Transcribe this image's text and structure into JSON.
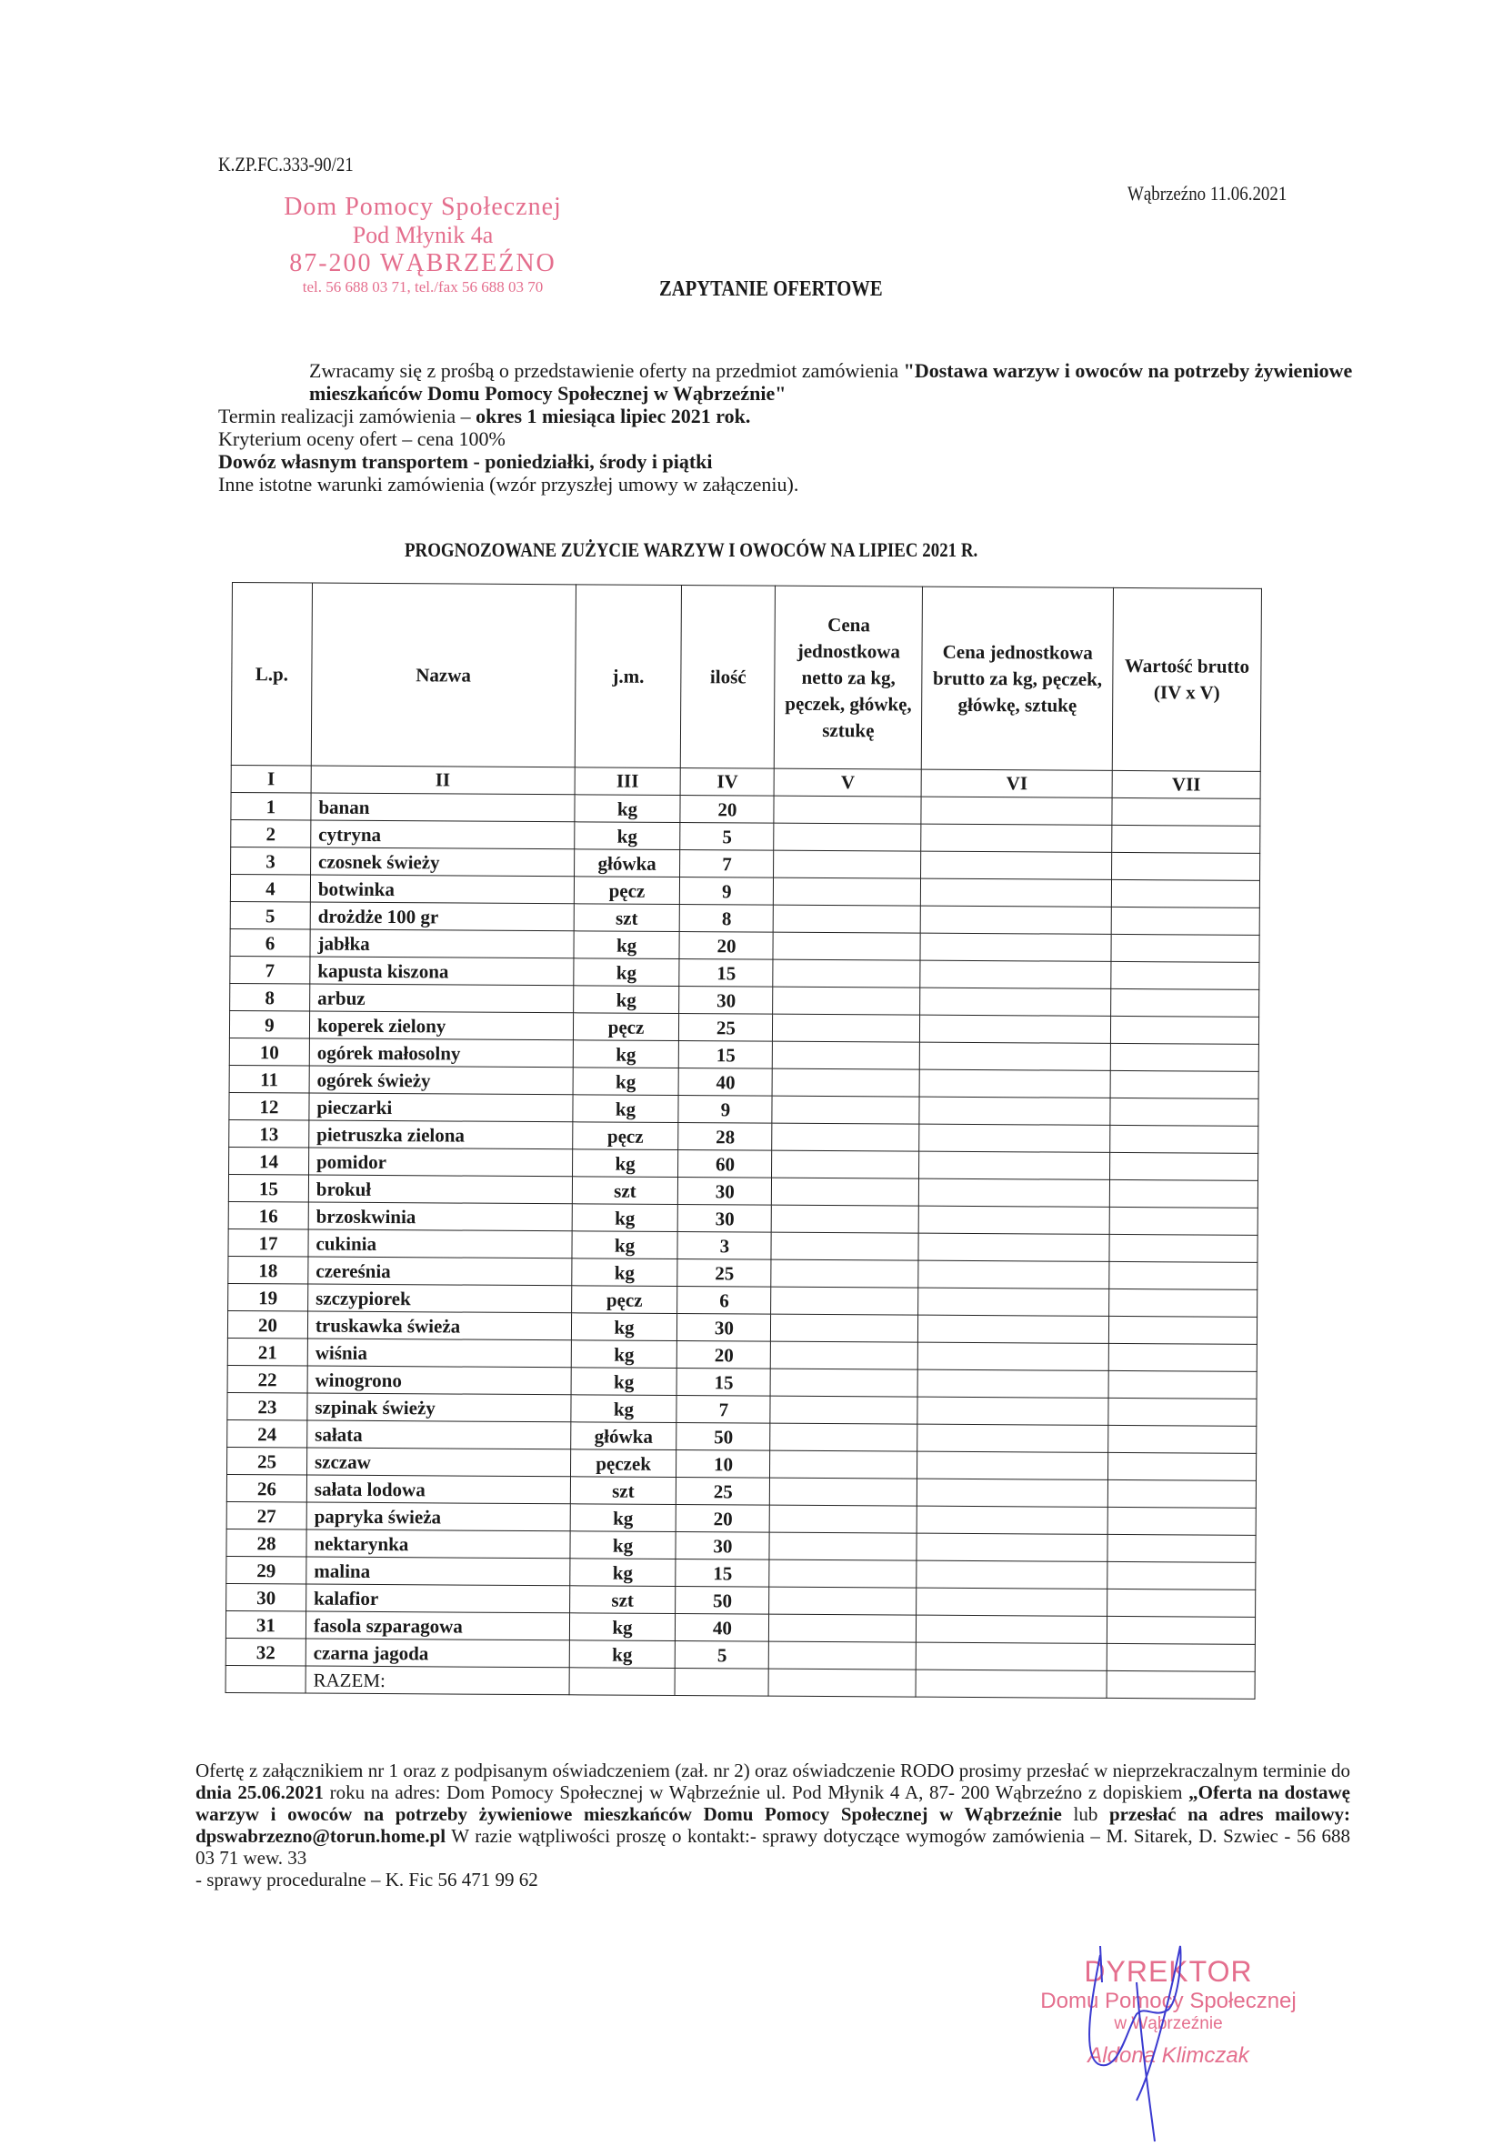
{
  "header": {
    "reference": "K.ZP.FC.333-90/21",
    "place_date": "Wąbrzeźno 11.06.2021",
    "stamp": {
      "line1": "Dom Pomocy Społecznej",
      "line2": "Pod Młynik 4a",
      "line3": "87-200 WĄBRZEŹNO",
      "line4": "tel. 56 688 03 71, tel./fax 56 688 03 70"
    },
    "title": "ZAPYTANIE OFERTOWE"
  },
  "intro": {
    "p1_text": "Zwracamy się z prośbą o przedstawienie oferty na  przedmiot zamówienia ",
    "p1_bold": "\"Dostawa warzyw i owoców na potrzeby żywieniowe mieszkańców Domu Pomocy Społecznej w Wąbrzeźnie\"",
    "term_text": "Termin realizacji zamówienia – ",
    "term_bold": "okres 1 miesiąca lipiec 2021 rok.",
    "criteria": "Kryterium oceny ofert – cena 100%",
    "delivery_bold": "Dowóz własnym transportem -  poniedziałki, środy i piątki",
    "other": "Inne istotne warunki zamówienia (wzór przyszłej umowy w załączeniu)."
  },
  "table": {
    "title": "PROGNOZOWANE ZUŻYCIE WARZYW I OWOCÓW NA LIPIEC  2021 R.",
    "headers": [
      "L.p.",
      "Nazwa",
      "j.m.",
      "ilość",
      "Cena jednostkowa netto za kg, pęczek, główkę, sztukę",
      "Cena jednostkowa brutto za kg, pęczek, główkę, sztukę",
      "Wartość brutto (IV x V)"
    ],
    "numerals": [
      "I",
      "II",
      "III",
      "IV",
      "V",
      "VI",
      "VII"
    ],
    "rows": [
      [
        "1",
        "banan",
        "kg",
        "20"
      ],
      [
        "2",
        "cytryna",
        "kg",
        "5"
      ],
      [
        "3",
        "czosnek świeży",
        "główka",
        "7"
      ],
      [
        "4",
        "botwinka",
        "pęcz",
        "9"
      ],
      [
        "5",
        "drożdże 100 gr",
        "szt",
        "8"
      ],
      [
        "6",
        "jabłka",
        "kg",
        "20"
      ],
      [
        "7",
        "kapusta kiszona",
        "kg",
        "15"
      ],
      [
        "8",
        "arbuz",
        "kg",
        "30"
      ],
      [
        "9",
        "koperek zielony",
        "pęcz",
        "25"
      ],
      [
        "10",
        "ogórek małosolny",
        "kg",
        "15"
      ],
      [
        "11",
        "ogórek świeży",
        "kg",
        "40"
      ],
      [
        "12",
        "pieczarki",
        "kg",
        "9"
      ],
      [
        "13",
        "pietruszka zielona",
        "pęcz",
        "28"
      ],
      [
        "14",
        "pomidor",
        "kg",
        "60"
      ],
      [
        "15",
        "brokuł",
        "szt",
        "30"
      ],
      [
        "16",
        "brzoskwinia",
        "kg",
        "30"
      ],
      [
        "17",
        "cukinia",
        "kg",
        "3"
      ],
      [
        "18",
        "czereśnia",
        "kg",
        "25"
      ],
      [
        "19",
        "szczypiorek",
        "pęcz",
        "6"
      ],
      [
        "20",
        "truskawka świeża",
        "kg",
        "30"
      ],
      [
        "21",
        "wiśnia",
        "kg",
        "20"
      ],
      [
        "22",
        "winogrono",
        "kg",
        "15"
      ],
      [
        "23",
        "szpinak świeży",
        "kg",
        "7"
      ],
      [
        "24",
        "sałata",
        "główka",
        "50"
      ],
      [
        "25",
        "szczaw",
        "pęczek",
        "10"
      ],
      [
        "26",
        "sałata lodowa",
        "szt",
        "25"
      ],
      [
        "27",
        "papryka świeża",
        "kg",
        "20"
      ],
      [
        "28",
        "nektarynka",
        "kg",
        "30"
      ],
      [
        "29",
        "malina",
        "kg",
        "15"
      ],
      [
        "30",
        "kalafior",
        "szt",
        "50"
      ],
      [
        "31",
        "fasola szparagowa",
        "kg",
        "40"
      ],
      [
        "32",
        "czarna jagoda",
        "kg",
        "5"
      ]
    ],
    "total_label": "RAZEM:"
  },
  "footer": {
    "t1": "Ofertę z załącznikiem nr 1 oraz z podpisanym oświadczeniem (zał. nr 2) oraz oświadczenie RODO prosimy przesłać  w nieprzekraczalnym terminie do ",
    "b1": "dnia 25.06.2021",
    "t2": " roku na adres: Dom Pomocy Społecznej w Wąbrzeźnie ul. Pod Młynik 4 A, 87- 200 Wąbrzeźno z dopiskiem ",
    "b2": "„Oferta na dostawę warzyw i owoców na potrzeby żywieniowe mieszkańców Domu Pomocy Społecznej w Wąbrzeźnie",
    "t3": " lub ",
    "b3": "przesłać na adres mailowy: dpswabrzezno@torun.home.pl",
    "t4": " W razie wątpliwości proszę o kontakt:- sprawy dotyczące wymogów zamówienia – M. Sitarek, D. Szwiec - 56 688 03 71 wew. 33",
    "t5": "- sprawy proceduralne – K. Fic 56 471 99 62"
  },
  "signature": {
    "line1": "DYREKTOR",
    "line2": "Domu Pomocy Społecznej",
    "line3": "w Wąbrzeźnie",
    "line4": "Aldona Klimczak"
  },
  "colors": {
    "stamp": "#e0557a",
    "signature_ink": "#3a3ad0",
    "text": "#1a1a1a"
  }
}
